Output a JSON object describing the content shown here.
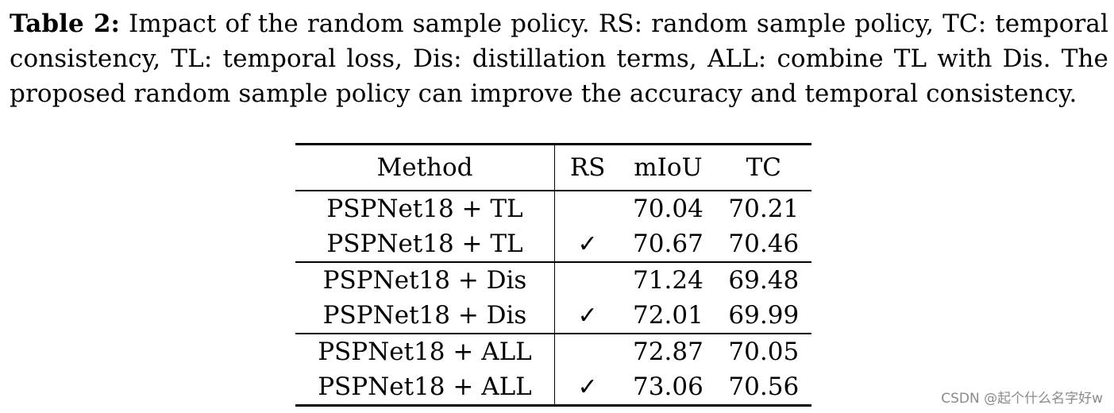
{
  "caption": {
    "label": "Table 2:",
    "text": "Impact of the random sample policy. RS: random sample policy, TC: temporal consistency, TL: temporal loss, Dis: distillation terms, ALL: combine TL with Dis. The proposed random sample policy can improve the accuracy and temporal consistency."
  },
  "table": {
    "headers": [
      "Method",
      "RS",
      "mIoU",
      "TC"
    ],
    "rows": [
      {
        "method": "PSPNet18 + TL",
        "rs": "",
        "miou": "70.04",
        "tc": "70.21"
      },
      {
        "method": "PSPNet18 + TL",
        "rs": "✓",
        "miou": "70.67",
        "tc": "70.46"
      },
      {
        "method": "PSPNet18 + Dis",
        "rs": "",
        "miou": "71.24",
        "tc": "69.48"
      },
      {
        "method": "PSPNet18 + Dis",
        "rs": "✓",
        "miou": "72.01",
        "tc": "69.99"
      },
      {
        "method": "PSPNet18 + ALL",
        "rs": "",
        "miou": "72.87",
        "tc": "70.05"
      },
      {
        "method": "PSPNet18 + ALL",
        "rs": "✓",
        "miou": "73.06",
        "tc": "70.56"
      }
    ]
  },
  "watermark": "CSDN @起个什么名字好w"
}
